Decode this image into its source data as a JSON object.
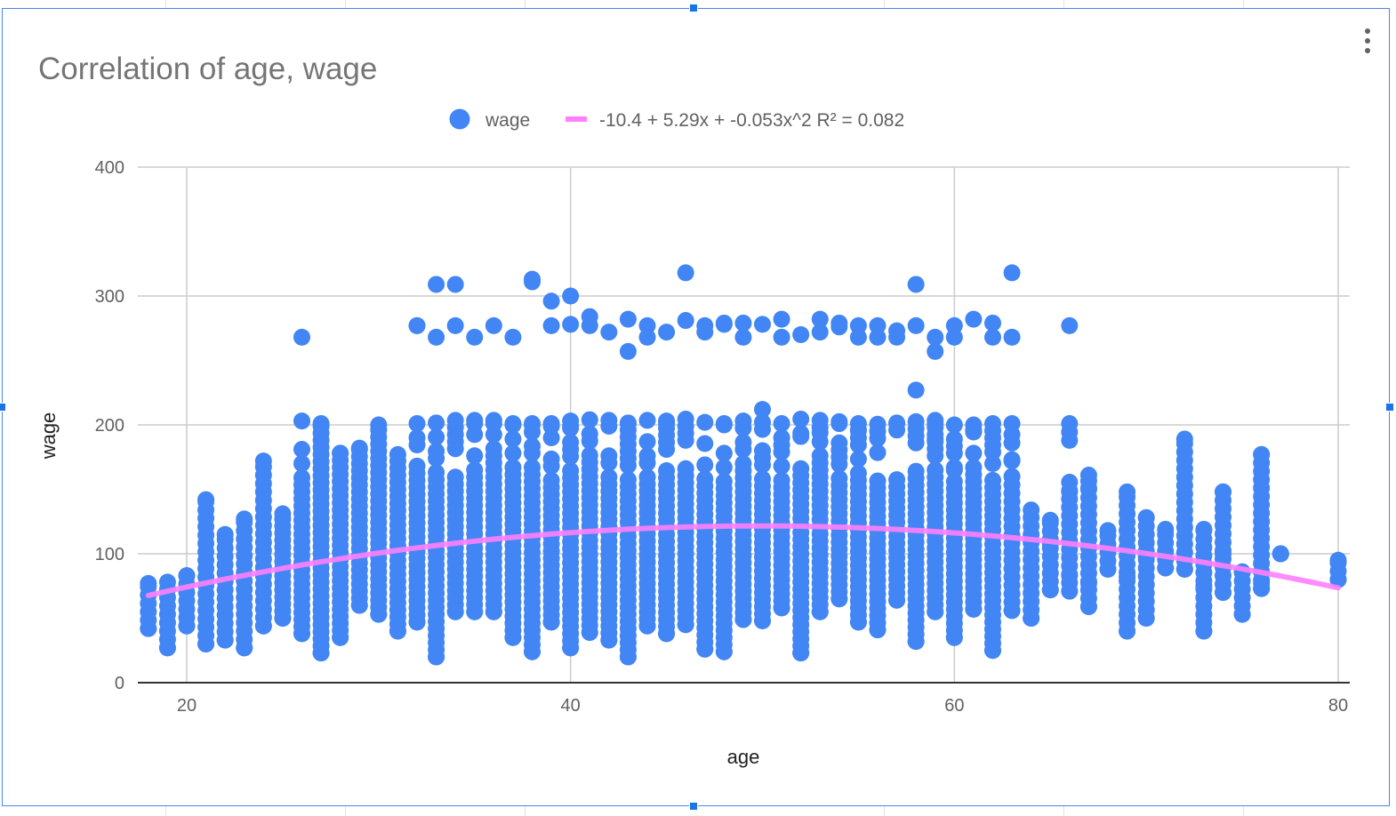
{
  "chart_data": {
    "type": "scatter",
    "title": "Correlation of age, wage",
    "xlabel": "age",
    "ylabel": "wage",
    "xlim": [
      18,
      80
    ],
    "ylim": [
      0,
      400
    ],
    "x_ticks": [
      20,
      40,
      60,
      80
    ],
    "y_ticks": [
      0,
      100,
      200,
      300,
      400
    ],
    "grid": true,
    "legend_position": "top",
    "series": [
      {
        "name": "wage",
        "type": "scatter",
        "color": "#4285f4",
        "ranges": [
          [
            18,
            42,
            77
          ],
          [
            19,
            27,
            78
          ],
          [
            20,
            44,
            83
          ],
          [
            21,
            30,
            142
          ],
          [
            22,
            33,
            115
          ],
          [
            23,
            27,
            127
          ],
          [
            24,
            44,
            172
          ],
          [
            25,
            50,
            131
          ],
          [
            26,
            38,
            268
          ],
          [
            27,
            23,
            201
          ],
          [
            28,
            35,
            178
          ],
          [
            29,
            60,
            182
          ],
          [
            30,
            53,
            200
          ],
          [
            31,
            40,
            177
          ],
          [
            32,
            47,
            277
          ],
          [
            33,
            20,
            309
          ],
          [
            34,
            55,
            277
          ],
          [
            35,
            55,
            268
          ],
          [
            36,
            55,
            277
          ],
          [
            37,
            35,
            268
          ],
          [
            38,
            24,
            313
          ],
          [
            39,
            47,
            296
          ],
          [
            40,
            27,
            300
          ],
          [
            41,
            39,
            284
          ],
          [
            42,
            33,
            272
          ],
          [
            43,
            20,
            282
          ],
          [
            44,
            44,
            277
          ],
          [
            45,
            38,
            272
          ],
          [
            46,
            45,
            318
          ],
          [
            47,
            26,
            277
          ],
          [
            48,
            24,
            279
          ],
          [
            49,
            49,
            279
          ],
          [
            50,
            48,
            278
          ],
          [
            51,
            58,
            282
          ],
          [
            52,
            23,
            270
          ],
          [
            53,
            55,
            282
          ],
          [
            54,
            65,
            279
          ],
          [
            55,
            47,
            277
          ],
          [
            56,
            41,
            277
          ],
          [
            57,
            64,
            273
          ],
          [
            58,
            32,
            309
          ],
          [
            59,
            55,
            268
          ],
          [
            60,
            35,
            277
          ],
          [
            61,
            57,
            282
          ],
          [
            62,
            25,
            279
          ],
          [
            63,
            56,
            318
          ],
          [
            64,
            50,
            134
          ],
          [
            65,
            72,
            126
          ],
          [
            66,
            71,
            277
          ],
          [
            67,
            59,
            161
          ],
          [
            68,
            88,
            118
          ],
          [
            69,
            40,
            148
          ],
          [
            70,
            50,
            128
          ],
          [
            71,
            89,
            119
          ],
          [
            72,
            88,
            189
          ],
          [
            73,
            40,
            119
          ],
          [
            74,
            70,
            148
          ],
          [
            75,
            53,
            86
          ],
          [
            76,
            73,
            177
          ],
          [
            77,
            100,
            100
          ],
          [
            80,
            80,
            95
          ]
        ],
        "outliers": [
          [
            38,
            311
          ],
          [
            39,
            277
          ],
          [
            40,
            278
          ],
          [
            41,
            277
          ],
          [
            43,
            257
          ],
          [
            44,
            268
          ],
          [
            46,
            281
          ],
          [
            47,
            272
          ],
          [
            48,
            278
          ],
          [
            49,
            268
          ],
          [
            50,
            212
          ],
          [
            51,
            268
          ],
          [
            53,
            272
          ],
          [
            54,
            276
          ],
          [
            55,
            268
          ],
          [
            56,
            268
          ],
          [
            57,
            268
          ],
          [
            58,
            227
          ],
          [
            58,
            277
          ],
          [
            59,
            257
          ],
          [
            60,
            268
          ],
          [
            62,
            268
          ],
          [
            63,
            268
          ],
          [
            63,
            201
          ],
          [
            63,
            172
          ],
          [
            61,
            196
          ],
          [
            60,
            165
          ],
          [
            62,
            170
          ],
          [
            66,
            148
          ],
          [
            67,
            151
          ],
          [
            65,
            108
          ],
          [
            66,
            83
          ],
          [
            67,
            77
          ],
          [
            69,
            82
          ],
          [
            73,
            75
          ],
          [
            74,
            100
          ],
          [
            70,
            98
          ],
          [
            76,
            77
          ],
          [
            73,
            92
          ],
          [
            34,
            309
          ],
          [
            32,
            277
          ],
          [
            33,
            268
          ],
          [
            35,
            201
          ],
          [
            36,
            201
          ],
          [
            37,
            201
          ],
          [
            38,
            201
          ],
          [
            39,
            199
          ],
          [
            40,
            199
          ],
          [
            42,
            199
          ],
          [
            43,
            201
          ],
          [
            45,
            201
          ],
          [
            48,
            201
          ],
          [
            52,
            191
          ],
          [
            53,
            194
          ],
          [
            54,
            201
          ],
          [
            55,
            196
          ],
          [
            57,
            201
          ],
          [
            59,
            201
          ],
          [
            59,
            189
          ]
        ]
      },
      {
        "name": "-10.4 + 5.29x + -0.053x^2 R² = 0.082",
        "type": "trendline",
        "color": "#ff80ff",
        "coefficients": [
          -10.4,
          5.29,
          -0.053
        ],
        "r_squared": 0.082
      }
    ]
  }
}
